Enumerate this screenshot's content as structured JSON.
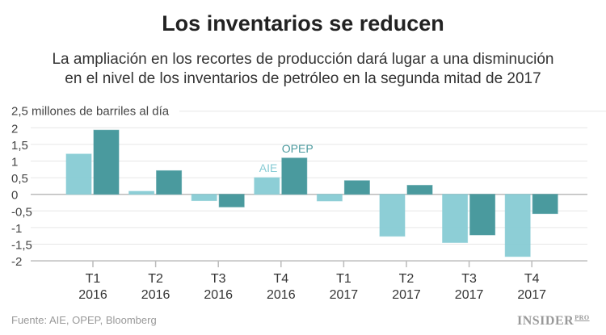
{
  "header": {
    "title": "Los inventarios se reducen",
    "subtitle_line1": "La ampliación en los recortes de producción dará lugar a una disminución",
    "subtitle_line2": "en el nivel de los inventarios de petróleo en la segunda mitad de 2017"
  },
  "footer": {
    "source": "Fuente: AIE, OPEP, Bloomberg",
    "logo": "INSIDER",
    "logo_suffix": "PRO"
  },
  "chart_data": {
    "type": "bar",
    "title": "",
    "ylabel": "millones de barriles al día",
    "ylim": [
      -2,
      2.5
    ],
    "yticks": [
      {
        "v": 2.5,
        "label": "2,5"
      },
      {
        "v": 2,
        "label": "2"
      },
      {
        "v": 1.5,
        "label": "1,5"
      },
      {
        "v": 1,
        "label": "1"
      },
      {
        "v": 0.5,
        "label": "0,5"
      },
      {
        "v": 0,
        "label": "0"
      },
      {
        "v": -0.5,
        "label": "-0,5"
      },
      {
        "v": -1,
        "label": "-1"
      },
      {
        "v": -1.5,
        "label": "-1,5"
      },
      {
        "v": -2,
        "label": "-2"
      }
    ],
    "grid": true,
    "categories": [
      [
        "T1",
        "2016"
      ],
      [
        "T2",
        "2016"
      ],
      [
        "T3",
        "2016"
      ],
      [
        "T4",
        "2016"
      ],
      [
        "T1",
        "2017"
      ],
      [
        "T2",
        "2017"
      ],
      [
        "T3",
        "2017"
      ],
      [
        "T4",
        "2017"
      ]
    ],
    "series": [
      {
        "name": "AIE",
        "color": "#87cbd4",
        "values": [
          1.21,
          0.09,
          -0.19,
          0.5,
          -0.2,
          -1.26,
          -1.45,
          -1.87
        ]
      },
      {
        "name": "OPEP",
        "color": "#4a9a9e",
        "values": [
          1.93,
          0.71,
          -0.38,
          1.09,
          0.41,
          0.27,
          -1.22,
          -0.58
        ]
      }
    ],
    "legend": "inline labels above T4 2016 bars"
  }
}
